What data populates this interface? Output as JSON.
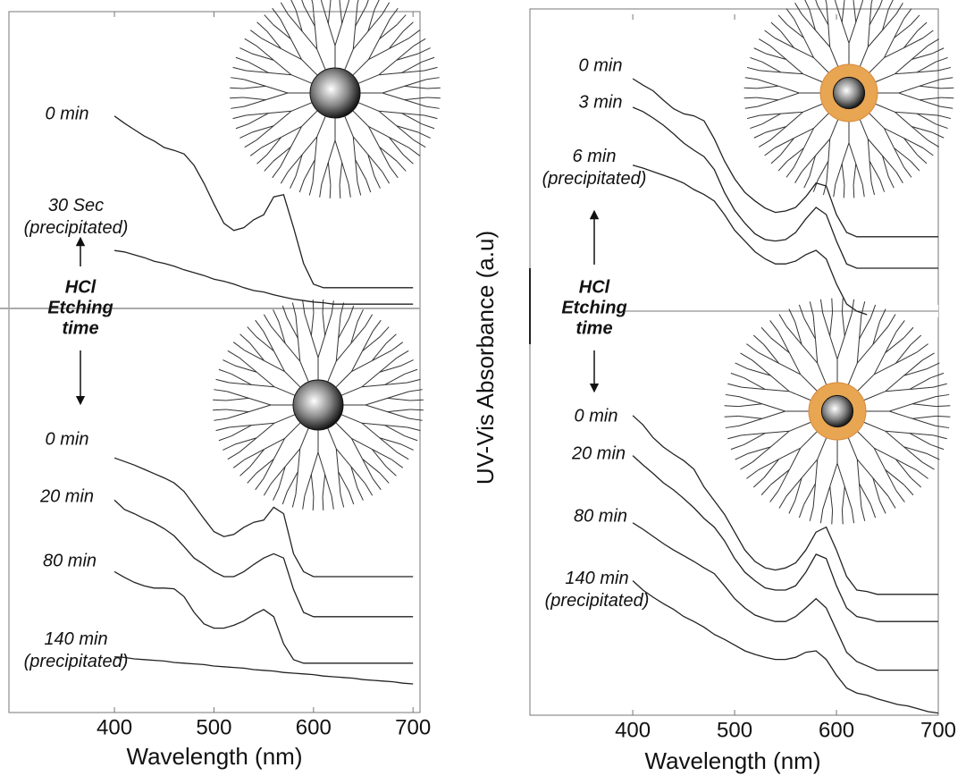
{
  "chart_data": [
    {
      "type": "line",
      "xlabel": "Wavelength (nm)",
      "ylabel": "UV-Vis Absorbance (a.u)",
      "annotation": "HCl\nEtching\ntime",
      "color": "#222222",
      "x": [
        400,
        410,
        420,
        430,
        440,
        450,
        460,
        470,
        480,
        490,
        500,
        510,
        520,
        530,
        540,
        550,
        560,
        570,
        580,
        590,
        600,
        610,
        620,
        630,
        640,
        650,
        660,
        670,
        680,
        690,
        700
      ],
      "xlim": [
        294,
        707
      ],
      "xticks": [
        400,
        500,
        600,
        700
      ],
      "ylim": [
        0,
        98
      ],
      "series": [
        {
          "name": "0 min",
          "values": [
            83.4,
            82.4,
            81.5,
            80.6,
            79.9,
            79,
            78.6,
            78.1,
            76.5,
            74,
            71.1,
            68.4,
            67.4,
            67.8,
            68.9,
            69.6,
            72.1,
            72.4,
            67.8,
            62.8,
            59.9,
            59.4,
            59.4,
            59.4,
            59.4,
            59.4,
            59.4,
            59.4,
            59.4,
            59.4,
            59.4
          ]
        },
        {
          "name": "30 Sec\n(precipitated)",
          "values": [
            64.6,
            64.4,
            64,
            63.6,
            63.1,
            62.8,
            62.4,
            61.9,
            61.5,
            61.1,
            60.6,
            60.3,
            59.9,
            59.4,
            59,
            58.8,
            58.4,
            58.1,
            57.8,
            57.6,
            57.4,
            57.3,
            57.1,
            57.1,
            57.1,
            57.1,
            57.1,
            57.1,
            57.1,
            57.1,
            57.1
          ]
        },
        {
          "name": "0 min",
          "values": [
            35.6,
            35.1,
            34.6,
            34,
            33.4,
            32.8,
            32.1,
            30.9,
            29,
            27.1,
            25.3,
            24.6,
            24.9,
            25.9,
            26.6,
            26.9,
            28.7,
            27.8,
            22.2,
            19.7,
            19,
            19,
            19,
            19,
            19,
            19,
            19,
            19,
            19,
            19,
            19
          ]
        },
        {
          "name": "20 min",
          "values": [
            29.7,
            28.4,
            27.8,
            27.1,
            26.5,
            25.7,
            24.7,
            23.2,
            21.6,
            20.7,
            19.7,
            19,
            19,
            19.7,
            20.7,
            21.6,
            22.2,
            21.6,
            17.2,
            14,
            13.4,
            13.4,
            13.4,
            13.4,
            13.4,
            13.4,
            13.4,
            13.4,
            13.4,
            13.4,
            13.4
          ]
        },
        {
          "name": "80 min",
          "values": [
            19.7,
            18.9,
            18.2,
            17.7,
            17.4,
            17.4,
            17.3,
            16.2,
            14,
            12.4,
            11.8,
            11.8,
            12.2,
            12.8,
            13.7,
            14.4,
            13.4,
            9.6,
            7.4,
            6.9,
            6.9,
            6.9,
            6.9,
            6.9,
            6.9,
            6.9,
            6.9,
            6.9,
            6.9,
            6.9,
            6.9
          ]
        },
        {
          "name": "140 min\n(precipitated)",
          "values": [
            7.8,
            7.7,
            7.5,
            7.4,
            7.3,
            7.2,
            7,
            6.9,
            6.8,
            6.7,
            6.5,
            6.4,
            6.3,
            6.2,
            6,
            5.9,
            5.8,
            5.6,
            5.5,
            5.4,
            5.3,
            5.1,
            5,
            4.9,
            4.8,
            4.6,
            4.5,
            4.4,
            4.3,
            4.1,
            4
          ]
        }
      ]
    },
    {
      "type": "line",
      "xlabel": "Wavelength (nm)",
      "annotation": "HCl\nEtching\ntime",
      "color": "#222222",
      "x": [
        400,
        410,
        420,
        430,
        440,
        450,
        460,
        470,
        480,
        490,
        500,
        510,
        520,
        530,
        540,
        550,
        560,
        570,
        580,
        590,
        600,
        610,
        620,
        630,
        640,
        650,
        660,
        670,
        680,
        690,
        700
      ],
      "xlim": [
        299,
        700
      ],
      "xticks": [
        400,
        500,
        600,
        700
      ],
      "ylim": [
        0,
        98
      ],
      "series": [
        {
          "name": "0 min",
          "values": [
            89,
            88.1,
            87.3,
            86,
            84.8,
            84.1,
            83.8,
            83.1,
            80.6,
            77.5,
            75,
            73.1,
            71.9,
            70.9,
            70.3,
            70.5,
            71,
            72.5,
            74.4,
            74,
            70,
            67.5,
            66.9,
            66.9,
            66.9,
            66.9,
            66.9,
            66.9,
            66.9,
            66.9,
            66.9
          ]
        },
        {
          "name": "3 min",
          "values": [
            85,
            84.4,
            83.5,
            82.5,
            81.3,
            80,
            79,
            78.1,
            76.3,
            73.1,
            70.6,
            68.8,
            67.3,
            66.5,
            66.3,
            66.5,
            67.5,
            69.4,
            71,
            70,
            66.3,
            63.1,
            62.5,
            62.5,
            62.5,
            62.5,
            62.5,
            62.5,
            62.5,
            62.5,
            62.5
          ]
        },
        {
          "name": "6 min\n(precipitated)",
          "values": [
            76.9,
            76.5,
            76,
            75.5,
            75,
            74.4,
            73.5,
            72.8,
            71.9,
            70,
            67.8,
            66.3,
            64.8,
            63.8,
            63.1,
            63.1,
            63.5,
            64.4,
            65,
            63.8,
            60.3,
            57.5,
            56.5,
            56,
            null,
            null,
            null,
            null,
            null,
            null,
            null
          ]
        },
        {
          "name": "0 min",
          "values": [
            41.9,
            40.6,
            38.8,
            37.5,
            36.5,
            35.6,
            34.4,
            31.9,
            30,
            28.1,
            25.6,
            23.1,
            21.5,
            20.6,
            20.3,
            20.6,
            21.3,
            23.1,
            25.6,
            26.3,
            23.1,
            19.4,
            17.5,
            17.3,
            16.9,
            16.9,
            16.9,
            16.9,
            16.9,
            16.9,
            16.9
          ]
        },
        {
          "name": "20 min",
          "values": [
            36.3,
            35,
            33.8,
            32.5,
            31.5,
            30.3,
            29,
            27.5,
            26.3,
            24.4,
            21.9,
            20,
            18.8,
            17.8,
            17.5,
            17.5,
            18.1,
            20,
            22.5,
            21.9,
            18.1,
            15,
            13.8,
            13.5,
            13.1,
            13.1,
            13.1,
            13.1,
            13.1,
            13.1,
            13.1
          ]
        },
        {
          "name": "80 min",
          "values": [
            26.9,
            26,
            25,
            24,
            23.1,
            22.3,
            21.5,
            20.6,
            19.8,
            18.1,
            16.3,
            15,
            14,
            13.5,
            13.1,
            13.1,
            13.8,
            15,
            16.3,
            15,
            11.9,
            8.8,
            7.5,
            6.9,
            6.3,
            6.3,
            6.3,
            6.3,
            6.3,
            6.3,
            6.3
          ]
        },
        {
          "name": "140 min\n(precipitated)",
          "values": [
            18.8,
            17.5,
            16.5,
            15.6,
            14.8,
            13.8,
            13.1,
            12.3,
            11.3,
            10.6,
            9.8,
            9,
            8.5,
            8.1,
            7.8,
            7.8,
            8.1,
            8.8,
            9,
            7.8,
            5.6,
            3.8,
            3.1,
            2.8,
            2.3,
            1.9,
            1.5,
            1.3,
            0.9,
            0.5,
            0.3
          ]
        }
      ]
    }
  ]
}
